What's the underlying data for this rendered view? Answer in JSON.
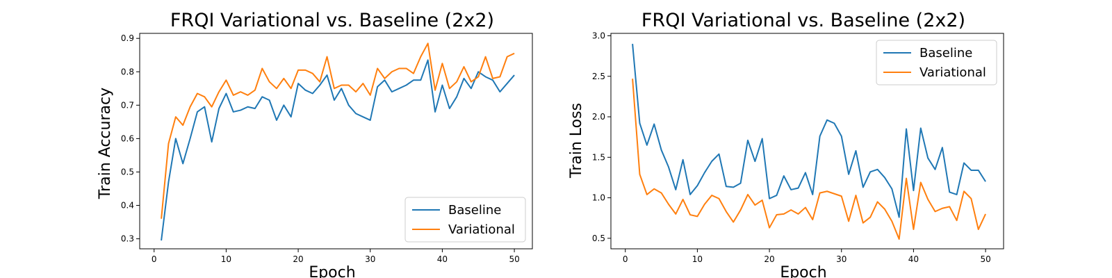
{
  "colors": {
    "baseline": "#1f77b4",
    "variational": "#ff7f0e"
  },
  "chart_data": [
    {
      "type": "line",
      "title": "FRQI Variational vs. Baseline (2x2)",
      "xlabel": "Epoch",
      "ylabel": "Train Accuracy",
      "xlim": [
        -2,
        52.5
      ],
      "ylim": [
        0.27,
        0.915
      ],
      "xticks": [
        0,
        10,
        20,
        30,
        40,
        50
      ],
      "yticks": [
        0.3,
        0.4,
        0.5,
        0.6,
        0.7,
        0.8,
        0.9
      ],
      "legend_position": "lower-right",
      "x": [
        1,
        2,
        3,
        4,
        5,
        6,
        7,
        8,
        9,
        10,
        11,
        12,
        13,
        14,
        15,
        16,
        17,
        18,
        19,
        20,
        21,
        22,
        23,
        24,
        25,
        26,
        27,
        28,
        29,
        30,
        31,
        32,
        33,
        34,
        35,
        36,
        37,
        38,
        39,
        40,
        41,
        42,
        43,
        44,
        45,
        46,
        47,
        48,
        49,
        50
      ],
      "series": [
        {
          "name": "Baseline",
          "color": "#1f77b4",
          "values": [
            0.295,
            0.47,
            0.6,
            0.525,
            0.6,
            0.68,
            0.695,
            0.59,
            0.69,
            0.735,
            0.68,
            0.685,
            0.695,
            0.69,
            0.725,
            0.715,
            0.655,
            0.7,
            0.665,
            0.765,
            0.745,
            0.735,
            0.76,
            0.79,
            0.715,
            0.75,
            0.7,
            0.675,
            0.665,
            0.655,
            0.755,
            0.775,
            0.74,
            0.75,
            0.76,
            0.775,
            0.775,
            0.835,
            0.68,
            0.76,
            0.69,
            0.725,
            0.78,
            0.75,
            0.8,
            0.785,
            0.775,
            0.74,
            0.765,
            0.79
          ]
        },
        {
          "name": "Variational",
          "color": "#ff7f0e",
          "values": [
            0.36,
            0.585,
            0.665,
            0.64,
            0.695,
            0.735,
            0.725,
            0.695,
            0.74,
            0.775,
            0.73,
            0.74,
            0.73,
            0.745,
            0.81,
            0.77,
            0.75,
            0.78,
            0.75,
            0.805,
            0.805,
            0.795,
            0.77,
            0.845,
            0.75,
            0.76,
            0.76,
            0.74,
            0.765,
            0.73,
            0.81,
            0.78,
            0.8,
            0.81,
            0.81,
            0.795,
            0.845,
            0.885,
            0.745,
            0.825,
            0.75,
            0.77,
            0.815,
            0.77,
            0.785,
            0.845,
            0.78,
            0.785,
            0.845,
            0.855
          ]
        }
      ]
    },
    {
      "type": "line",
      "title": "FRQI Variational vs. Baseline (2x2)",
      "xlabel": "Epoch",
      "ylabel": "Train Loss",
      "xlim": [
        -2,
        52.5
      ],
      "ylim": [
        0.37,
        3.03
      ],
      "xticks": [
        0,
        10,
        20,
        30,
        40,
        50
      ],
      "yticks": [
        0.5,
        1.0,
        1.5,
        2.0,
        2.5,
        3.0
      ],
      "legend_position": "upper-right",
      "x": [
        1,
        2,
        3,
        4,
        5,
        6,
        7,
        8,
        9,
        10,
        11,
        12,
        13,
        14,
        15,
        16,
        17,
        18,
        19,
        20,
        21,
        22,
        23,
        24,
        25,
        26,
        27,
        28,
        29,
        30,
        31,
        32,
        33,
        34,
        35,
        36,
        37,
        38,
        39,
        40,
        41,
        42,
        43,
        44,
        45,
        46,
        47,
        48,
        49,
        50
      ],
      "series": [
        {
          "name": "Baseline",
          "color": "#1f77b4",
          "values": [
            2.9,
            1.92,
            1.65,
            1.91,
            1.59,
            1.38,
            1.1,
            1.47,
            1.04,
            1.15,
            1.31,
            1.45,
            1.54,
            1.14,
            1.13,
            1.18,
            1.71,
            1.45,
            1.73,
            0.99,
            1.03,
            1.27,
            1.1,
            1.12,
            1.31,
            1.04,
            1.76,
            1.96,
            1.92,
            1.76,
            1.29,
            1.58,
            1.13,
            1.32,
            1.35,
            1.25,
            1.11,
            0.76,
            1.85,
            1.09,
            1.86,
            1.49,
            1.35,
            1.62,
            1.07,
            1.04,
            1.43,
            1.34,
            1.34,
            1.2
          ]
        },
        {
          "name": "Variational",
          "color": "#ff7f0e",
          "values": [
            2.47,
            1.29,
            1.04,
            1.11,
            1.06,
            0.92,
            0.8,
            0.98,
            0.79,
            0.77,
            0.92,
            1.03,
            0.99,
            0.83,
            0.7,
            0.85,
            1.04,
            0.91,
            0.97,
            0.63,
            0.79,
            0.8,
            0.85,
            0.8,
            0.88,
            0.73,
            1.06,
            1.08,
            1.05,
            1.02,
            0.71,
            1.03,
            0.69,
            0.76,
            0.95,
            0.86,
            0.71,
            0.49,
            1.24,
            0.61,
            1.19,
            0.98,
            0.83,
            0.87,
            0.89,
            0.72,
            1.08,
            0.99,
            0.61,
            0.8
          ]
        }
      ]
    }
  ]
}
